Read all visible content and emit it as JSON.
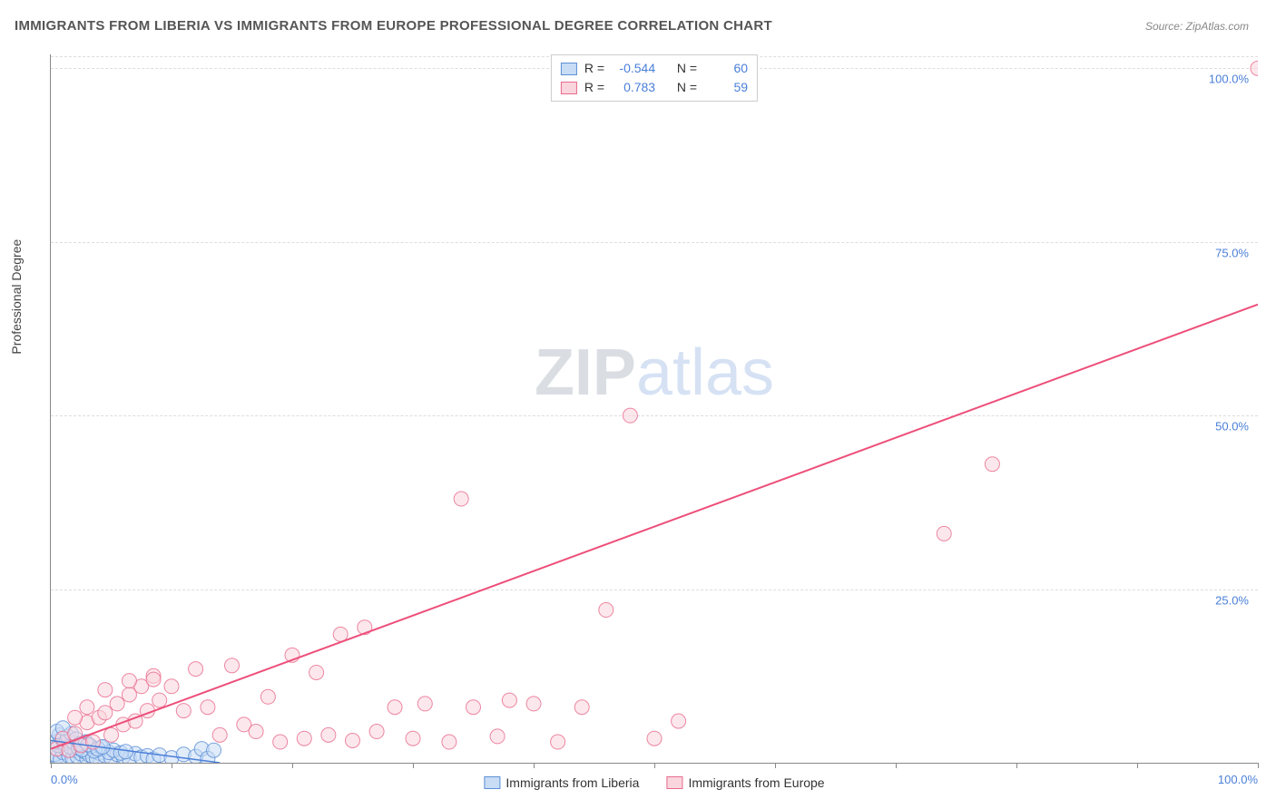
{
  "chart": {
    "type": "scatter",
    "title": "IMMIGRANTS FROM LIBERIA VS IMMIGRANTS FROM EUROPE PROFESSIONAL DEGREE CORRELATION CHART",
    "source": "Source: ZipAtlas.com",
    "y_axis_label": "Professional Degree",
    "xlim": [
      0,
      100
    ],
    "ylim": [
      0,
      102
    ],
    "x_ticks": [
      0,
      10,
      20,
      30,
      40,
      50,
      60,
      70,
      80,
      90,
      100
    ],
    "x_tick_labels_shown": {
      "0": "0.0%",
      "100": "100.0%"
    },
    "y_ticks": [
      25,
      50,
      75,
      100
    ],
    "y_tick_labels": {
      "25": "25.0%",
      "50": "50.0%",
      "75": "75.0%",
      "100": "100.0%"
    },
    "grid_color": "#dddddd",
    "background_color": "#ffffff",
    "axis_color": "#888888",
    "tick_label_color": "#4a7fd8",
    "title_fontsize": 15,
    "label_fontsize": 14,
    "tick_fontsize": 13,
    "watermark": {
      "text_a": "ZIP",
      "text_b": "atlas",
      "color_a": "rgba(150,160,175,0.35)",
      "color_b": "rgba(120,160,220,0.30)",
      "fontsize": 72
    },
    "series": [
      {
        "name": "Immigrants from Liberia",
        "marker_fill": "#c9dcf5",
        "marker_stroke": "#5b8fd6",
        "marker_opacity": 0.55,
        "line_color": "#4a7fd8",
        "line_width": 1.5,
        "marker_radius": 8,
        "R_label": "R =",
        "R_value": "-0.544",
        "N_label": "N =",
        "N_value": "60",
        "regression": {
          "x1": 0,
          "y1": 3.2,
          "x2": 14,
          "y2": 0
        },
        "points": [
          [
            0.2,
            0.3
          ],
          [
            0.5,
            0.8
          ],
          [
            0.3,
            1.2
          ],
          [
            0.8,
            0.5
          ],
          [
            1.0,
            1.5
          ],
          [
            1.2,
            2.0
          ],
          [
            0.6,
            2.5
          ],
          [
            1.5,
            1.0
          ],
          [
            0.4,
            3.0
          ],
          [
            1.8,
            0.7
          ],
          [
            2.0,
            1.8
          ],
          [
            0.9,
            3.5
          ],
          [
            2.2,
            0.9
          ],
          [
            1.1,
            2.8
          ],
          [
            2.5,
            1.3
          ],
          [
            0.7,
            4.0
          ],
          [
            3.0,
            0.6
          ],
          [
            1.3,
            3.2
          ],
          [
            2.8,
            1.6
          ],
          [
            1.6,
            2.3
          ],
          [
            3.2,
            1.1
          ],
          [
            0.5,
            4.5
          ],
          [
            3.5,
            0.8
          ],
          [
            1.9,
            2.9
          ],
          [
            2.3,
            2.1
          ],
          [
            4.0,
            1.4
          ],
          [
            1.4,
            3.8
          ],
          [
            3.8,
            0.5
          ],
          [
            2.6,
            1.9
          ],
          [
            4.5,
            1.0
          ],
          [
            1.7,
            4.2
          ],
          [
            5.0,
            0.7
          ],
          [
            2.1,
            3.4
          ],
          [
            3.3,
            2.4
          ],
          [
            5.5,
            1.2
          ],
          [
            2.4,
            2.7
          ],
          [
            6.0,
            0.9
          ],
          [
            3.6,
            1.7
          ],
          [
            4.2,
            2.2
          ],
          [
            1.0,
            5.0
          ],
          [
            6.5,
            0.6
          ],
          [
            2.9,
            3.0
          ],
          [
            7.0,
            1.3
          ],
          [
            4.8,
            1.5
          ],
          [
            3.1,
            2.6
          ],
          [
            7.5,
            0.8
          ],
          [
            5.2,
            1.8
          ],
          [
            8.0,
            1.0
          ],
          [
            3.9,
            2.0
          ],
          [
            8.5,
            0.5
          ],
          [
            5.8,
            1.4
          ],
          [
            9.0,
            1.1
          ],
          [
            4.3,
            2.3
          ],
          [
            10.0,
            0.7
          ],
          [
            6.2,
            1.6
          ],
          [
            11.0,
            1.2
          ],
          [
            12.0,
            0.9
          ],
          [
            12.5,
            2.0
          ],
          [
            13.0,
            0.6
          ],
          [
            13.5,
            1.8
          ]
        ]
      },
      {
        "name": "Immigrants from Europe",
        "marker_fill": "#f9d5dd",
        "marker_stroke": "#e86a8c",
        "marker_opacity": 0.55,
        "line_color": "#ed4f7a",
        "line_width": 2,
        "marker_radius": 8,
        "R_label": "R =",
        "R_value": "0.783",
        "N_label": "N =",
        "N_value": "59",
        "regression": {
          "x1": 0,
          "y1": 2,
          "x2": 100,
          "y2": 66
        },
        "points": [
          [
            0.5,
            2.0
          ],
          [
            1.0,
            3.5
          ],
          [
            1.5,
            1.8
          ],
          [
            2.0,
            4.2
          ],
          [
            2.5,
            2.5
          ],
          [
            3.0,
            5.8
          ],
          [
            3.5,
            3.0
          ],
          [
            4.0,
            6.5
          ],
          [
            4.5,
            7.2
          ],
          [
            5.0,
            4.0
          ],
          [
            5.5,
            8.5
          ],
          [
            6.0,
            5.5
          ],
          [
            6.5,
            9.8
          ],
          [
            7.0,
            6.0
          ],
          [
            7.5,
            11.0
          ],
          [
            8.0,
            7.5
          ],
          [
            8.5,
            12.5
          ],
          [
            9.0,
            9.0
          ],
          [
            10.0,
            11.0
          ],
          [
            11.0,
            7.5
          ],
          [
            12.0,
            13.5
          ],
          [
            13.0,
            8.0
          ],
          [
            14.0,
            4.0
          ],
          [
            15.0,
            14.0
          ],
          [
            16.0,
            5.5
          ],
          [
            17.0,
            4.5
          ],
          [
            18.0,
            9.5
          ],
          [
            19.0,
            3.0
          ],
          [
            20.0,
            15.5
          ],
          [
            21.0,
            3.5
          ],
          [
            22.0,
            13.0
          ],
          [
            23.0,
            4.0
          ],
          [
            24.0,
            18.5
          ],
          [
            25.0,
            3.2
          ],
          [
            26.0,
            19.5
          ],
          [
            27.0,
            4.5
          ],
          [
            28.5,
            8.0
          ],
          [
            30.0,
            3.5
          ],
          [
            31.0,
            8.5
          ],
          [
            33.0,
            3.0
          ],
          [
            34.0,
            38.0
          ],
          [
            35.0,
            8.0
          ],
          [
            37.0,
            3.8
          ],
          [
            38.0,
            9.0
          ],
          [
            40.0,
            8.5
          ],
          [
            42.0,
            3.0
          ],
          [
            44.0,
            8.0
          ],
          [
            46.0,
            22.0
          ],
          [
            48.0,
            50.0
          ],
          [
            50.0,
            3.5
          ],
          [
            52.0,
            6.0
          ],
          [
            74.0,
            33.0
          ],
          [
            78.0,
            43.0
          ],
          [
            100.0,
            100.0
          ],
          [
            4.5,
            10.5
          ],
          [
            6.5,
            11.8
          ],
          [
            8.5,
            12.0
          ],
          [
            3.0,
            8.0
          ],
          [
            2.0,
            6.5
          ]
        ]
      }
    ]
  }
}
